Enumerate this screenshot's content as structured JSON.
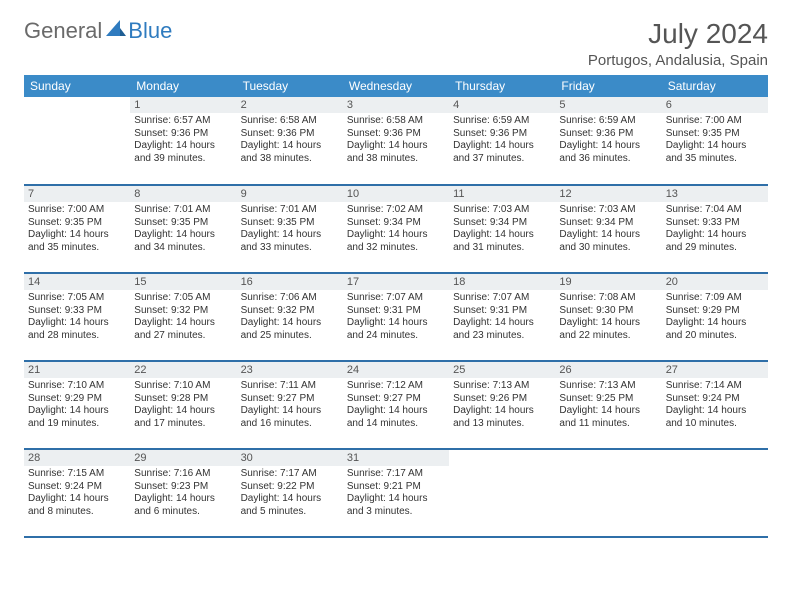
{
  "logo": {
    "general": "General",
    "blue": "Blue"
  },
  "title": "July 2024",
  "location": "Portugos, Andalusia, Spain",
  "colors": {
    "header_bg": "#3b8bc8",
    "header_text": "#ffffff",
    "daynum_bg": "#eceff1",
    "row_border": "#2f6fa8",
    "text": "#333333",
    "logo_gray": "#6a6a6a",
    "logo_blue": "#2f7bbf"
  },
  "weekdays": [
    "Sunday",
    "Monday",
    "Tuesday",
    "Wednesday",
    "Thursday",
    "Friday",
    "Saturday"
  ],
  "weeks": [
    [
      {
        "n": "",
        "sr": "",
        "ss": "",
        "dl": ""
      },
      {
        "n": "1",
        "sr": "Sunrise: 6:57 AM",
        "ss": "Sunset: 9:36 PM",
        "dl": "Daylight: 14 hours and 39 minutes."
      },
      {
        "n": "2",
        "sr": "Sunrise: 6:58 AM",
        "ss": "Sunset: 9:36 PM",
        "dl": "Daylight: 14 hours and 38 minutes."
      },
      {
        "n": "3",
        "sr": "Sunrise: 6:58 AM",
        "ss": "Sunset: 9:36 PM",
        "dl": "Daylight: 14 hours and 38 minutes."
      },
      {
        "n": "4",
        "sr": "Sunrise: 6:59 AM",
        "ss": "Sunset: 9:36 PM",
        "dl": "Daylight: 14 hours and 37 minutes."
      },
      {
        "n": "5",
        "sr": "Sunrise: 6:59 AM",
        "ss": "Sunset: 9:36 PM",
        "dl": "Daylight: 14 hours and 36 minutes."
      },
      {
        "n": "6",
        "sr": "Sunrise: 7:00 AM",
        "ss": "Sunset: 9:35 PM",
        "dl": "Daylight: 14 hours and 35 minutes."
      }
    ],
    [
      {
        "n": "7",
        "sr": "Sunrise: 7:00 AM",
        "ss": "Sunset: 9:35 PM",
        "dl": "Daylight: 14 hours and 35 minutes."
      },
      {
        "n": "8",
        "sr": "Sunrise: 7:01 AM",
        "ss": "Sunset: 9:35 PM",
        "dl": "Daylight: 14 hours and 34 minutes."
      },
      {
        "n": "9",
        "sr": "Sunrise: 7:01 AM",
        "ss": "Sunset: 9:35 PM",
        "dl": "Daylight: 14 hours and 33 minutes."
      },
      {
        "n": "10",
        "sr": "Sunrise: 7:02 AM",
        "ss": "Sunset: 9:34 PM",
        "dl": "Daylight: 14 hours and 32 minutes."
      },
      {
        "n": "11",
        "sr": "Sunrise: 7:03 AM",
        "ss": "Sunset: 9:34 PM",
        "dl": "Daylight: 14 hours and 31 minutes."
      },
      {
        "n": "12",
        "sr": "Sunrise: 7:03 AM",
        "ss": "Sunset: 9:34 PM",
        "dl": "Daylight: 14 hours and 30 minutes."
      },
      {
        "n": "13",
        "sr": "Sunrise: 7:04 AM",
        "ss": "Sunset: 9:33 PM",
        "dl": "Daylight: 14 hours and 29 minutes."
      }
    ],
    [
      {
        "n": "14",
        "sr": "Sunrise: 7:05 AM",
        "ss": "Sunset: 9:33 PM",
        "dl": "Daylight: 14 hours and 28 minutes."
      },
      {
        "n": "15",
        "sr": "Sunrise: 7:05 AM",
        "ss": "Sunset: 9:32 PM",
        "dl": "Daylight: 14 hours and 27 minutes."
      },
      {
        "n": "16",
        "sr": "Sunrise: 7:06 AM",
        "ss": "Sunset: 9:32 PM",
        "dl": "Daylight: 14 hours and 25 minutes."
      },
      {
        "n": "17",
        "sr": "Sunrise: 7:07 AM",
        "ss": "Sunset: 9:31 PM",
        "dl": "Daylight: 14 hours and 24 minutes."
      },
      {
        "n": "18",
        "sr": "Sunrise: 7:07 AM",
        "ss": "Sunset: 9:31 PM",
        "dl": "Daylight: 14 hours and 23 minutes."
      },
      {
        "n": "19",
        "sr": "Sunrise: 7:08 AM",
        "ss": "Sunset: 9:30 PM",
        "dl": "Daylight: 14 hours and 22 minutes."
      },
      {
        "n": "20",
        "sr": "Sunrise: 7:09 AM",
        "ss": "Sunset: 9:29 PM",
        "dl": "Daylight: 14 hours and 20 minutes."
      }
    ],
    [
      {
        "n": "21",
        "sr": "Sunrise: 7:10 AM",
        "ss": "Sunset: 9:29 PM",
        "dl": "Daylight: 14 hours and 19 minutes."
      },
      {
        "n": "22",
        "sr": "Sunrise: 7:10 AM",
        "ss": "Sunset: 9:28 PM",
        "dl": "Daylight: 14 hours and 17 minutes."
      },
      {
        "n": "23",
        "sr": "Sunrise: 7:11 AM",
        "ss": "Sunset: 9:27 PM",
        "dl": "Daylight: 14 hours and 16 minutes."
      },
      {
        "n": "24",
        "sr": "Sunrise: 7:12 AM",
        "ss": "Sunset: 9:27 PM",
        "dl": "Daylight: 14 hours and 14 minutes."
      },
      {
        "n": "25",
        "sr": "Sunrise: 7:13 AM",
        "ss": "Sunset: 9:26 PM",
        "dl": "Daylight: 14 hours and 13 minutes."
      },
      {
        "n": "26",
        "sr": "Sunrise: 7:13 AM",
        "ss": "Sunset: 9:25 PM",
        "dl": "Daylight: 14 hours and 11 minutes."
      },
      {
        "n": "27",
        "sr": "Sunrise: 7:14 AM",
        "ss": "Sunset: 9:24 PM",
        "dl": "Daylight: 14 hours and 10 minutes."
      }
    ],
    [
      {
        "n": "28",
        "sr": "Sunrise: 7:15 AM",
        "ss": "Sunset: 9:24 PM",
        "dl": "Daylight: 14 hours and 8 minutes."
      },
      {
        "n": "29",
        "sr": "Sunrise: 7:16 AM",
        "ss": "Sunset: 9:23 PM",
        "dl": "Daylight: 14 hours and 6 minutes."
      },
      {
        "n": "30",
        "sr": "Sunrise: 7:17 AM",
        "ss": "Sunset: 9:22 PM",
        "dl": "Daylight: 14 hours and 5 minutes."
      },
      {
        "n": "31",
        "sr": "Sunrise: 7:17 AM",
        "ss": "Sunset: 9:21 PM",
        "dl": "Daylight: 14 hours and 3 minutes."
      },
      {
        "n": "",
        "sr": "",
        "ss": "",
        "dl": ""
      },
      {
        "n": "",
        "sr": "",
        "ss": "",
        "dl": ""
      },
      {
        "n": "",
        "sr": "",
        "ss": "",
        "dl": ""
      }
    ]
  ]
}
